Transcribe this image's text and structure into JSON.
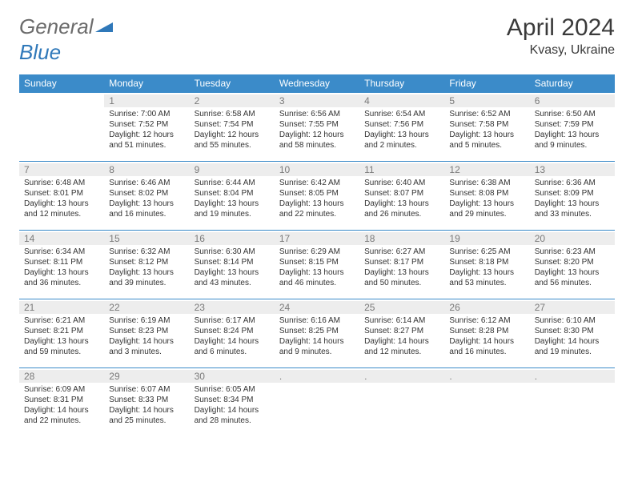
{
  "branding": {
    "word1": "General",
    "word2": "Blue"
  },
  "header": {
    "monthTitle": "April 2024",
    "location": "Kvasy, Ukraine"
  },
  "colors": {
    "headerBg": "#3b8bc9",
    "headerText": "#ffffff",
    "dayNumBg": "#ededed",
    "dayNumText": "#7a7a7a",
    "borderColor": "#3b8bc9",
    "titleColor": "#3a3a3a",
    "logoGray": "#6b6b6b",
    "logoBlue": "#2f78b9",
    "bodyText": "#333333"
  },
  "weekdays": [
    "Sunday",
    "Monday",
    "Tuesday",
    "Wednesday",
    "Thursday",
    "Friday",
    "Saturday"
  ],
  "layout": {
    "startBlankCells": 1,
    "daysInMonth": 30
  },
  "days": {
    "1": {
      "sunrise": "Sunrise: 7:00 AM",
      "sunset": "Sunset: 7:52 PM",
      "daylight": "Daylight: 12 hours and 51 minutes."
    },
    "2": {
      "sunrise": "Sunrise: 6:58 AM",
      "sunset": "Sunset: 7:54 PM",
      "daylight": "Daylight: 12 hours and 55 minutes."
    },
    "3": {
      "sunrise": "Sunrise: 6:56 AM",
      "sunset": "Sunset: 7:55 PM",
      "daylight": "Daylight: 12 hours and 58 minutes."
    },
    "4": {
      "sunrise": "Sunrise: 6:54 AM",
      "sunset": "Sunset: 7:56 PM",
      "daylight": "Daylight: 13 hours and 2 minutes."
    },
    "5": {
      "sunrise": "Sunrise: 6:52 AM",
      "sunset": "Sunset: 7:58 PM",
      "daylight": "Daylight: 13 hours and 5 minutes."
    },
    "6": {
      "sunrise": "Sunrise: 6:50 AM",
      "sunset": "Sunset: 7:59 PM",
      "daylight": "Daylight: 13 hours and 9 minutes."
    },
    "7": {
      "sunrise": "Sunrise: 6:48 AM",
      "sunset": "Sunset: 8:01 PM",
      "daylight": "Daylight: 13 hours and 12 minutes."
    },
    "8": {
      "sunrise": "Sunrise: 6:46 AM",
      "sunset": "Sunset: 8:02 PM",
      "daylight": "Daylight: 13 hours and 16 minutes."
    },
    "9": {
      "sunrise": "Sunrise: 6:44 AM",
      "sunset": "Sunset: 8:04 PM",
      "daylight": "Daylight: 13 hours and 19 minutes."
    },
    "10": {
      "sunrise": "Sunrise: 6:42 AM",
      "sunset": "Sunset: 8:05 PM",
      "daylight": "Daylight: 13 hours and 22 minutes."
    },
    "11": {
      "sunrise": "Sunrise: 6:40 AM",
      "sunset": "Sunset: 8:07 PM",
      "daylight": "Daylight: 13 hours and 26 minutes."
    },
    "12": {
      "sunrise": "Sunrise: 6:38 AM",
      "sunset": "Sunset: 8:08 PM",
      "daylight": "Daylight: 13 hours and 29 minutes."
    },
    "13": {
      "sunrise": "Sunrise: 6:36 AM",
      "sunset": "Sunset: 8:09 PM",
      "daylight": "Daylight: 13 hours and 33 minutes."
    },
    "14": {
      "sunrise": "Sunrise: 6:34 AM",
      "sunset": "Sunset: 8:11 PM",
      "daylight": "Daylight: 13 hours and 36 minutes."
    },
    "15": {
      "sunrise": "Sunrise: 6:32 AM",
      "sunset": "Sunset: 8:12 PM",
      "daylight": "Daylight: 13 hours and 39 minutes."
    },
    "16": {
      "sunrise": "Sunrise: 6:30 AM",
      "sunset": "Sunset: 8:14 PM",
      "daylight": "Daylight: 13 hours and 43 minutes."
    },
    "17": {
      "sunrise": "Sunrise: 6:29 AM",
      "sunset": "Sunset: 8:15 PM",
      "daylight": "Daylight: 13 hours and 46 minutes."
    },
    "18": {
      "sunrise": "Sunrise: 6:27 AM",
      "sunset": "Sunset: 8:17 PM",
      "daylight": "Daylight: 13 hours and 50 minutes."
    },
    "19": {
      "sunrise": "Sunrise: 6:25 AM",
      "sunset": "Sunset: 8:18 PM",
      "daylight": "Daylight: 13 hours and 53 minutes."
    },
    "20": {
      "sunrise": "Sunrise: 6:23 AM",
      "sunset": "Sunset: 8:20 PM",
      "daylight": "Daylight: 13 hours and 56 minutes."
    },
    "21": {
      "sunrise": "Sunrise: 6:21 AM",
      "sunset": "Sunset: 8:21 PM",
      "daylight": "Daylight: 13 hours and 59 minutes."
    },
    "22": {
      "sunrise": "Sunrise: 6:19 AM",
      "sunset": "Sunset: 8:23 PM",
      "daylight": "Daylight: 14 hours and 3 minutes."
    },
    "23": {
      "sunrise": "Sunrise: 6:17 AM",
      "sunset": "Sunset: 8:24 PM",
      "daylight": "Daylight: 14 hours and 6 minutes."
    },
    "24": {
      "sunrise": "Sunrise: 6:16 AM",
      "sunset": "Sunset: 8:25 PM",
      "daylight": "Daylight: 14 hours and 9 minutes."
    },
    "25": {
      "sunrise": "Sunrise: 6:14 AM",
      "sunset": "Sunset: 8:27 PM",
      "daylight": "Daylight: 14 hours and 12 minutes."
    },
    "26": {
      "sunrise": "Sunrise: 6:12 AM",
      "sunset": "Sunset: 8:28 PM",
      "daylight": "Daylight: 14 hours and 16 minutes."
    },
    "27": {
      "sunrise": "Sunrise: 6:10 AM",
      "sunset": "Sunset: 8:30 PM",
      "daylight": "Daylight: 14 hours and 19 minutes."
    },
    "28": {
      "sunrise": "Sunrise: 6:09 AM",
      "sunset": "Sunset: 8:31 PM",
      "daylight": "Daylight: 14 hours and 22 minutes."
    },
    "29": {
      "sunrise": "Sunrise: 6:07 AM",
      "sunset": "Sunset: 8:33 PM",
      "daylight": "Daylight: 14 hours and 25 minutes."
    },
    "30": {
      "sunrise": "Sunrise: 6:05 AM",
      "sunset": "Sunset: 8:34 PM",
      "daylight": "Daylight: 14 hours and 28 minutes."
    }
  }
}
